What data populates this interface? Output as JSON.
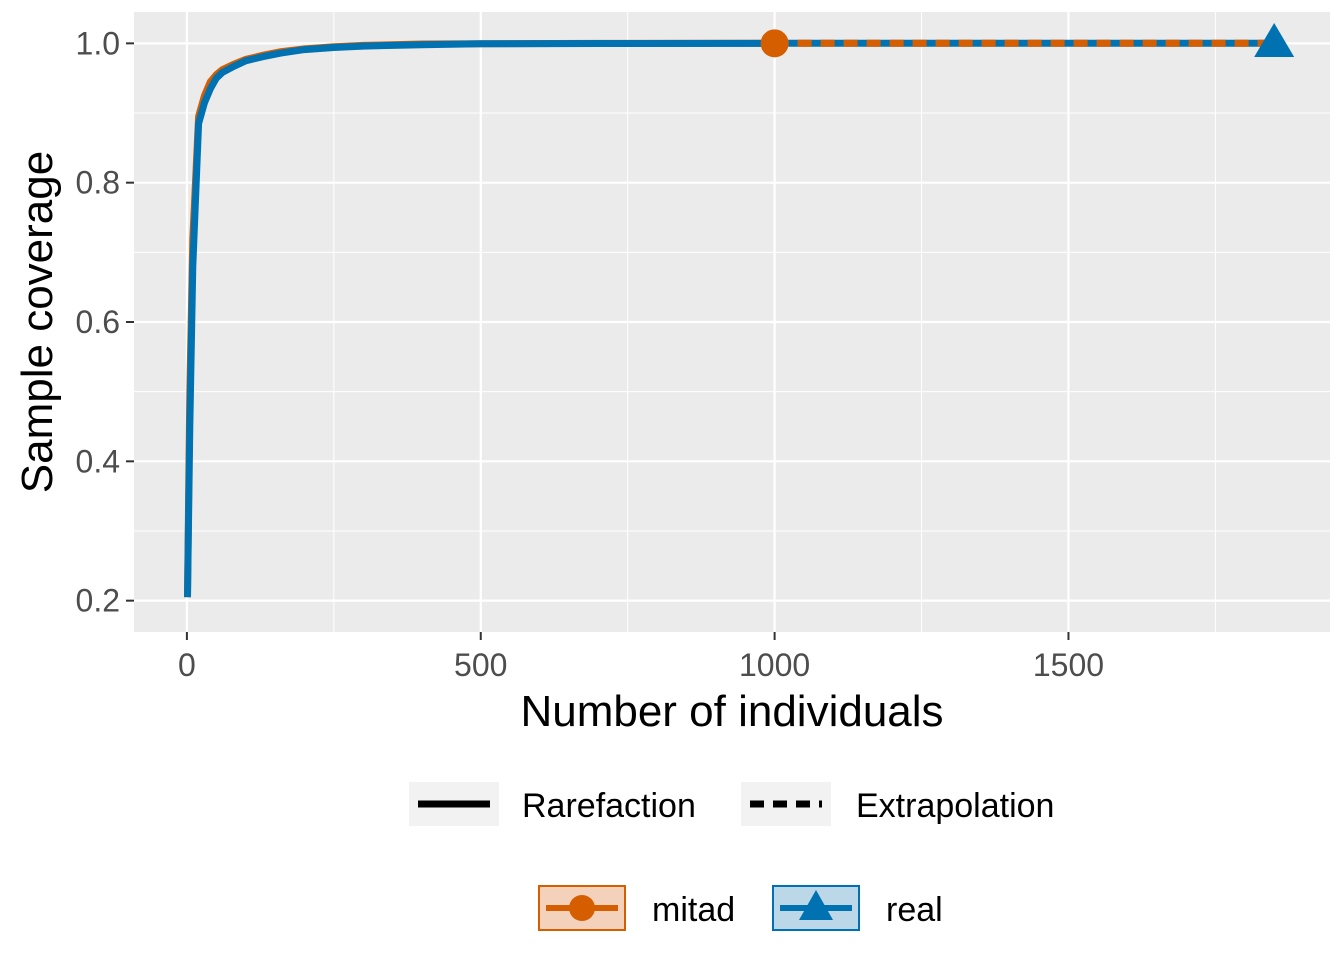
{
  "chart_data": {
    "type": "line",
    "xlabel": "Number of individuals",
    "ylabel": "Sample coverage",
    "xlim": [
      -90,
      1945
    ],
    "ylim": [
      0.155,
      1.045
    ],
    "x_ticks": [
      0,
      500,
      1000,
      1500
    ],
    "x_tick_labels": [
      "0",
      "500",
      "1000",
      "1500"
    ],
    "y_ticks": [
      0.2,
      0.4,
      0.6,
      0.8,
      1.0
    ],
    "y_tick_labels": [
      "0.2",
      "0.4",
      "0.6",
      "0.8",
      "1.0"
    ],
    "grid": true,
    "legend_position": "bottom",
    "linetype_legend": [
      {
        "label": "Rarefaction",
        "linetype": "solid"
      },
      {
        "label": "Extrapolation",
        "linetype": "dashed"
      }
    ],
    "series": [
      {
        "name": "mitad",
        "color": "#D55E00",
        "marker": "circle",
        "observed": {
          "x": 1000,
          "y": 1.0
        },
        "rarefaction": {
          "x": [
            1,
            5,
            10,
            20,
            30,
            40,
            50,
            60,
            80,
            100,
            130,
            160,
            200,
            250,
            300,
            400,
            500,
            700,
            1000
          ],
          "y": [
            0.205,
            0.5,
            0.72,
            0.895,
            0.925,
            0.945,
            0.955,
            0.962,
            0.97,
            0.977,
            0.983,
            0.988,
            0.992,
            0.995,
            0.997,
            0.999,
            0.9995,
            0.9999,
            1.0
          ]
        },
        "extrapolation": {
          "x": [
            1000,
            1250,
            1500,
            1750,
            1850
          ],
          "y": [
            1.0,
            1.0,
            1.0,
            1.0,
            1.0
          ]
        }
      },
      {
        "name": "real",
        "color": "#0072B2",
        "marker": "triangle",
        "observed": {
          "x": 1850,
          "y": 1.0
        },
        "rarefaction": {
          "x": [
            1,
            5,
            10,
            20,
            30,
            40,
            50,
            60,
            80,
            100,
            130,
            160,
            200,
            250,
            300,
            400,
            500,
            700,
            1000,
            1300,
            1600,
            1850
          ],
          "y": [
            0.205,
            0.45,
            0.68,
            0.885,
            0.915,
            0.935,
            0.95,
            0.958,
            0.967,
            0.975,
            0.981,
            0.986,
            0.991,
            0.994,
            0.996,
            0.998,
            0.9993,
            0.9998,
            1.0,
            1.0,
            1.0,
            1.0
          ]
        },
        "extrapolation": {
          "x": [],
          "y": []
        }
      }
    ]
  }
}
